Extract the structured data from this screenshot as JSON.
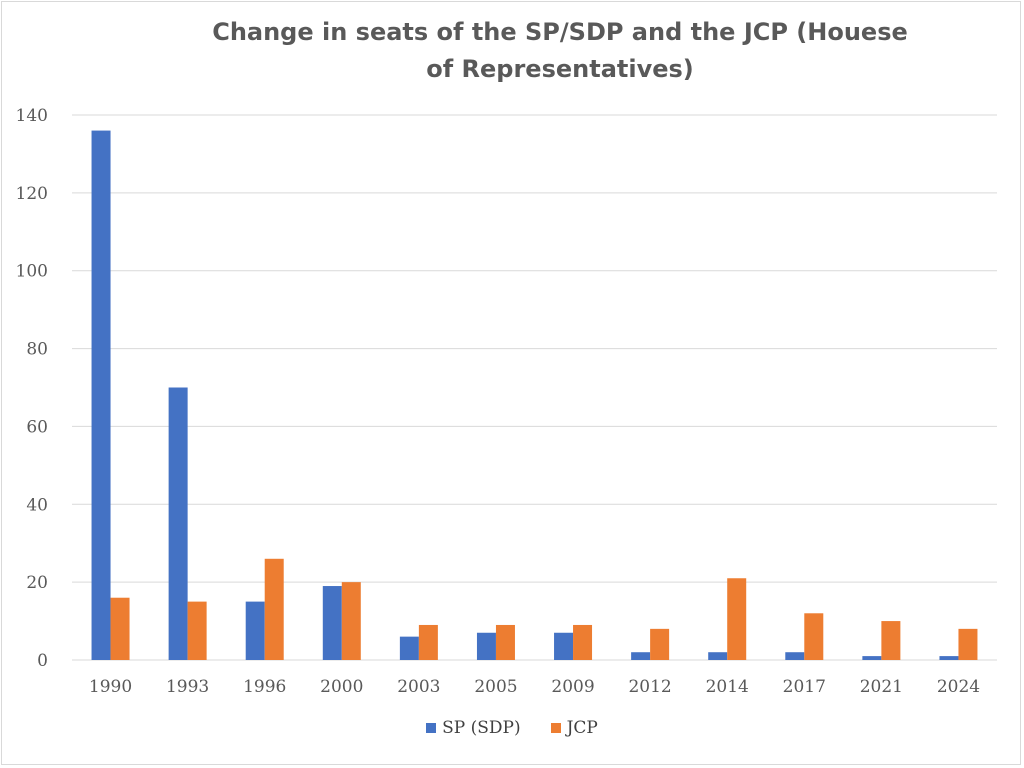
{
  "chart_data": {
    "type": "bar",
    "title": "Change in seats of the SP/SDP and the JCP (Houese of Representatives)",
    "categories": [
      "1990",
      "1993",
      "1996",
      "2000",
      "2003",
      "2005",
      "2009",
      "2012",
      "2014",
      "2017",
      "2021",
      "2024"
    ],
    "series": [
      {
        "name": "SP (SDP)",
        "color": "#4472c4",
        "values": [
          136,
          70,
          15,
          19,
          6,
          7,
          7,
          2,
          2,
          2,
          1,
          1
        ]
      },
      {
        "name": "JCP",
        "color": "#ed7d31",
        "values": [
          16,
          15,
          26,
          20,
          9,
          9,
          9,
          8,
          21,
          12,
          10,
          8
        ]
      }
    ],
    "yticks": [
      "0",
      "20",
      "40",
      "60",
      "80",
      "100",
      "120",
      "140"
    ],
    "ylim": [
      0,
      140
    ],
    "grid": true,
    "legend_position": "bottom"
  }
}
